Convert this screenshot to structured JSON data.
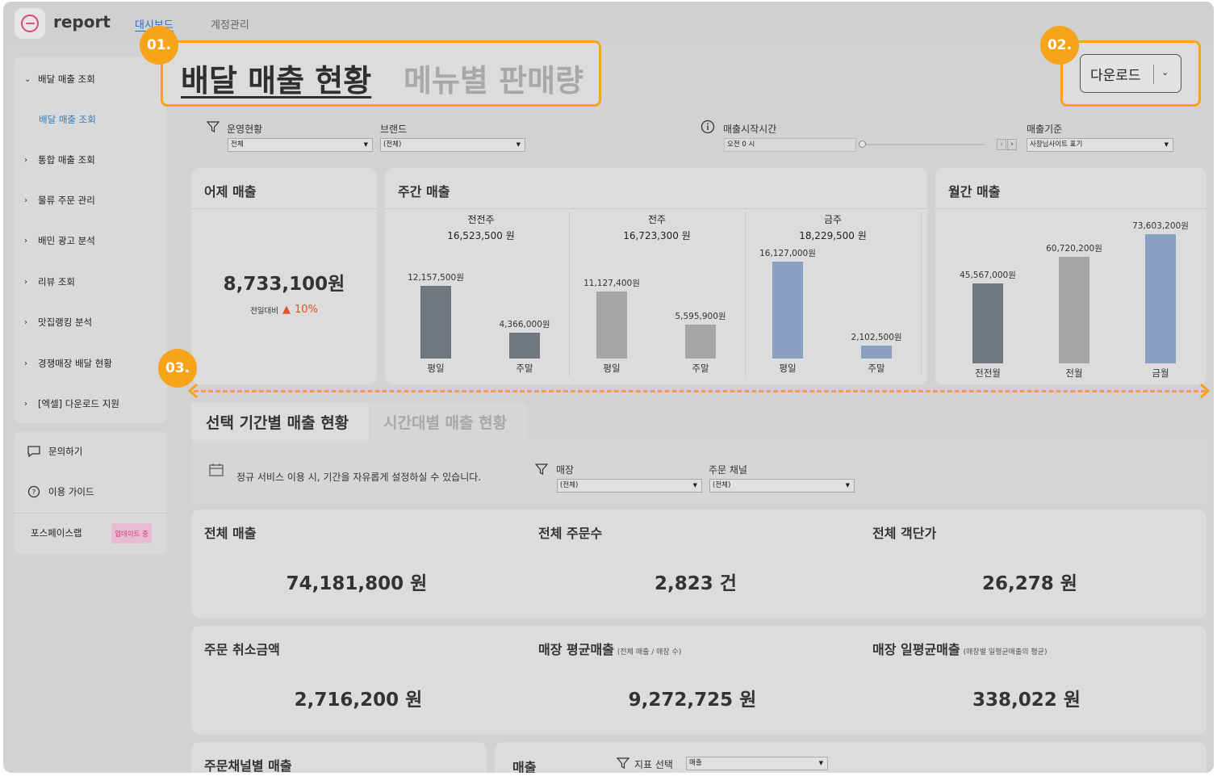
{
  "app": {
    "logo_text": "report"
  },
  "nav": {
    "tabs": [
      "대시보드",
      "계정관리"
    ],
    "active_index": 0
  },
  "sidebar": {
    "items": [
      {
        "label": "배달 매출 조회",
        "expanded": true
      },
      {
        "label": "통합 매출 조회",
        "expanded": false
      },
      {
        "label": "물류 주문 관리",
        "expanded": false
      },
      {
        "label": "배민 광고 분석",
        "expanded": false
      },
      {
        "label": "리뷰 조회",
        "expanded": false
      },
      {
        "label": "맛집랭킹 분석",
        "expanded": false
      },
      {
        "label": "경쟁매장 배달 현황",
        "expanded": false
      },
      {
        "label": "[엑셀] 다운로드 지원",
        "expanded": false
      }
    ],
    "sub_item": "배달 매출 조회",
    "support": {
      "inquiry": "문의하기",
      "guide": "이용 가이드",
      "brand": "포스페이스랩",
      "badge": "업데이트 중"
    }
  },
  "annotations": {
    "one": "01.",
    "two": "02.",
    "three": "03."
  },
  "main_tabs": {
    "active": "배달 매출 현황",
    "inactive": "메뉴별 판매량"
  },
  "download": {
    "label": "다운로드"
  },
  "filters": {
    "status_label": "운영현황",
    "status_value": "전체",
    "brand_label": "브랜드",
    "brand_value": "(전체)",
    "start_time_label": "매출시작시간",
    "start_time_value": "오전 0 시",
    "basis_label": "매출기준",
    "basis_value": "사장님사이트 표기",
    "colors": {
      "accent": "#f7a41b"
    }
  },
  "yesterday": {
    "title": "어제 매출",
    "value": "8,733,100원",
    "compare_label": "전일대비",
    "compare_value": "10%",
    "up_color": "#e0541f"
  },
  "weekly": {
    "title": "주간 매출",
    "groups": [
      {
        "name": "전전주",
        "total": "16,523,500 원",
        "weekday": 12157500,
        "weekday_label": "12,157,500원",
        "weekend": 4366000,
        "weekend_label": "4,366,000원",
        "color": "#717780"
      },
      {
        "name": "전주",
        "total": "16,723,300 원",
        "weekday": 11127400,
        "weekday_label": "11,127,400원",
        "weekend": 5595900,
        "weekend_label": "5,595,900원",
        "color": "#a5a5a5"
      },
      {
        "name": "금주",
        "total": "18,229,500 원",
        "weekday": 16127000,
        "weekday_label": "16,127,000원",
        "weekend": 2102500,
        "weekend_label": "2,102,500원",
        "color": "#8aa0c2"
      }
    ],
    "weekday_label": "평일",
    "weekend_label": "주말"
  },
  "monthly": {
    "title": "월간 매출",
    "bars": [
      {
        "name": "전전월",
        "value": 45567000,
        "label": "45,567,000원",
        "color": "#717780"
      },
      {
        "name": "전월",
        "value": 60720200,
        "label": "60,720,200원",
        "color": "#a5a5a5"
      },
      {
        "name": "금월",
        "value": 73603200,
        "label": "73,603,200원",
        "color": "#8aa0c2"
      }
    ]
  },
  "chart_data": [
    {
      "type": "bar",
      "title": "주간 매출",
      "categories": [
        "전전주 평일",
        "전전주 주말",
        "전주 평일",
        "전주 주말",
        "금주 평일",
        "금주 주말"
      ],
      "values": [
        12157500,
        4366000,
        11127400,
        5595900,
        16127000,
        2102500
      ]
    },
    {
      "type": "bar",
      "title": "월간 매출",
      "categories": [
        "전전월",
        "전월",
        "금월"
      ],
      "values": [
        45567000,
        60720200,
        73603200
      ]
    }
  ],
  "period_tabs": {
    "active": "선택 기간별 매출 현황",
    "inactive": "시간대별 매출 현황"
  },
  "period_filter": {
    "note": "정규 서비스 이용 시, 기간을 자유롭게 설정하실 수 있습니다.",
    "store_label": "매장",
    "store_value": "(전체)",
    "channel_label": "주문 채널",
    "channel_value": "(전체)"
  },
  "stats_row1": [
    {
      "title": "전체 매출",
      "value": "74,181,800 원"
    },
    {
      "title": "전체 주문수",
      "value": "2,823 건"
    },
    {
      "title": "전체 객단가",
      "value": "26,278 원"
    }
  ],
  "stats_row2": [
    {
      "title": "주문 취소금액",
      "note": "",
      "value": "2,716,200 원"
    },
    {
      "title": "매장 평균매출",
      "note": "(전체 매출 / 매장 수)",
      "value": "9,272,725 원"
    },
    {
      "title": "매장 일평균매출",
      "note": "(매장별 일평균매출의 평균)",
      "value": "338,022 원"
    }
  ],
  "bottom": {
    "channel_title": "주문채널별 매출",
    "sales_title": "매출",
    "metric_label": "지표 선택",
    "metric_value": "매출"
  }
}
